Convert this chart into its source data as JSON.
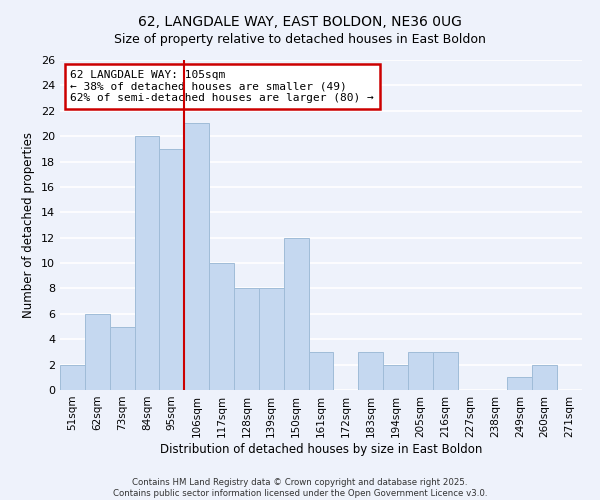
{
  "title": "62, LANGDALE WAY, EAST BOLDON, NE36 0UG",
  "subtitle": "Size of property relative to detached houses in East Boldon",
  "xlabel": "Distribution of detached houses by size in East Boldon",
  "ylabel": "Number of detached properties",
  "categories": [
    "51sqm",
    "62sqm",
    "73sqm",
    "84sqm",
    "95sqm",
    "106sqm",
    "117sqm",
    "128sqm",
    "139sqm",
    "150sqm",
    "161sqm",
    "172sqm",
    "183sqm",
    "194sqm",
    "205sqm",
    "216sqm",
    "227sqm",
    "238sqm",
    "249sqm",
    "260sqm",
    "271sqm"
  ],
  "values": [
    2,
    6,
    5,
    20,
    19,
    21,
    10,
    8,
    8,
    12,
    3,
    0,
    3,
    2,
    3,
    3,
    0,
    0,
    1,
    2,
    0
  ],
  "bar_color": "#c5d8f0",
  "bar_edge_color": "#a0bcd8",
  "highlight_index": 5,
  "highlight_line_color": "#cc0000",
  "ylim": [
    0,
    26
  ],
  "yticks": [
    0,
    2,
    4,
    6,
    8,
    10,
    12,
    14,
    16,
    18,
    20,
    22,
    24,
    26
  ],
  "bg_color": "#eef2fb",
  "grid_color": "#ffffff",
  "annotation_line1": "62 LANGDALE WAY: 105sqm",
  "annotation_line2": "← 38% of detached houses are smaller (49)",
  "annotation_line3": "62% of semi-detached houses are larger (80) →",
  "annotation_box_edge": "#cc0000",
  "footer1": "Contains HM Land Registry data © Crown copyright and database right 2025.",
  "footer2": "Contains public sector information licensed under the Open Government Licence v3.0."
}
